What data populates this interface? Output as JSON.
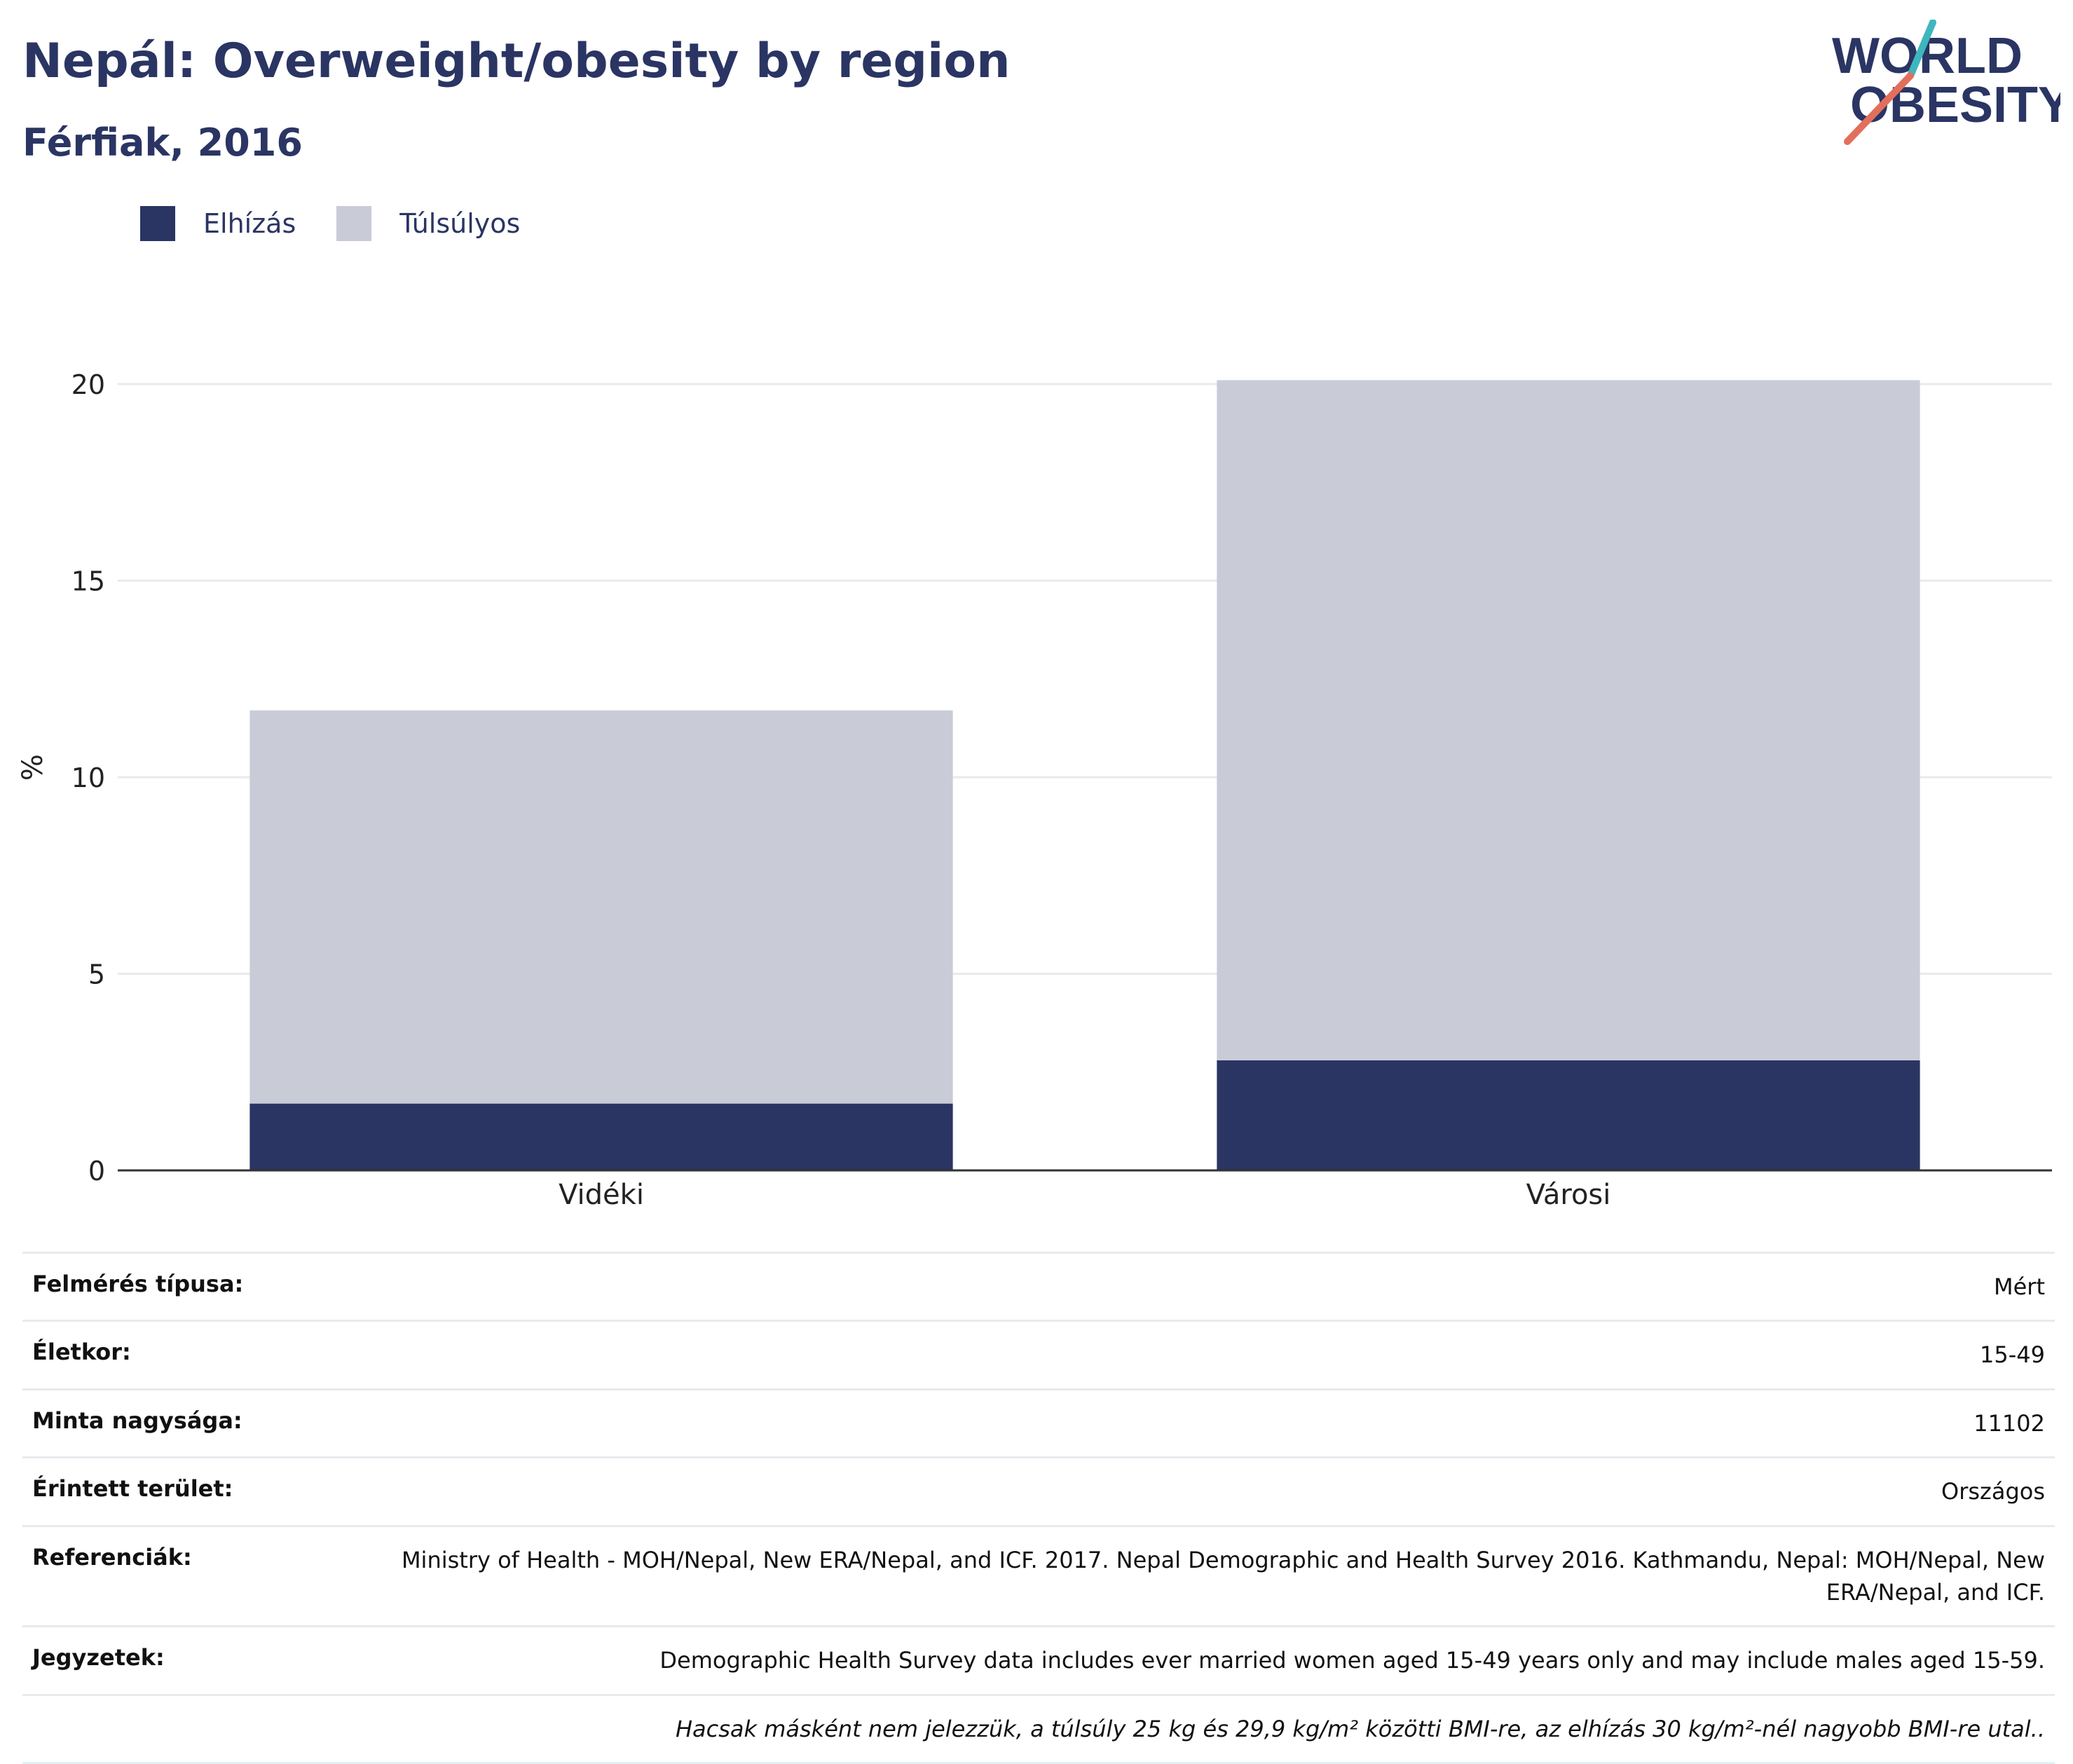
{
  "header": {
    "title": "Nepál: Overweight/obesity by region",
    "subtitle": "Férfiak, 2016"
  },
  "logo": {
    "line1": "WORLD",
    "line2": "OBESITY"
  },
  "colors": {
    "obesity": "#2a3563",
    "overweight": "#c9ccd7",
    "text": "#2a3563",
    "logo_teal": "#3fb6bd",
    "logo_red": "#e26f5b",
    "grid": "#e8eaee"
  },
  "legend": {
    "items": [
      {
        "label": "Elhízás",
        "color": "#2a3563"
      },
      {
        "label": "Túlsúlyos",
        "color": "#c9ccd7"
      }
    ]
  },
  "chart_data": {
    "type": "bar",
    "stacked": true,
    "categories": [
      "Vidéki",
      "Városi"
    ],
    "series": [
      {
        "name": "Elhízás",
        "values": [
          1.7,
          2.8
        ]
      },
      {
        "name": "Túlsúlyos",
        "values": [
          10.0,
          17.3
        ]
      }
    ],
    "ylabel": "%",
    "ylim": [
      0,
      20.5
    ],
    "yticks": [
      0,
      5,
      10,
      15,
      20
    ],
    "grid": true,
    "legend_position": "top-left"
  },
  "meta": {
    "rows": [
      {
        "key": "Felmérés típusa:",
        "value": "Mért"
      },
      {
        "key": "Életkor:",
        "value": "15-49"
      },
      {
        "key": "Minta nagysága:",
        "value": "11102"
      },
      {
        "key": "Érintett terület:",
        "value": "Országos"
      },
      {
        "key": "Referenciák:",
        "value": "Ministry of Health - MOH/Nepal, New ERA/Nepal, and ICF. 2017. Nepal Demographic and Health Survey 2016. Kathmandu, Nepal: MOH/Nepal, New ERA/Nepal, and ICF."
      },
      {
        "key": "Jegyzetek:",
        "value": "Demographic Health Survey data includes ever married women aged 15-49 years only and may include males aged 15-59."
      }
    ],
    "note": "Hacsak másként nem jelezzük, a túlsúly 25 kg és 29,9 kg/m² közötti BMI-re, az elhízás 30 kg/m²-nél nagyobb BMI-re utal.."
  }
}
